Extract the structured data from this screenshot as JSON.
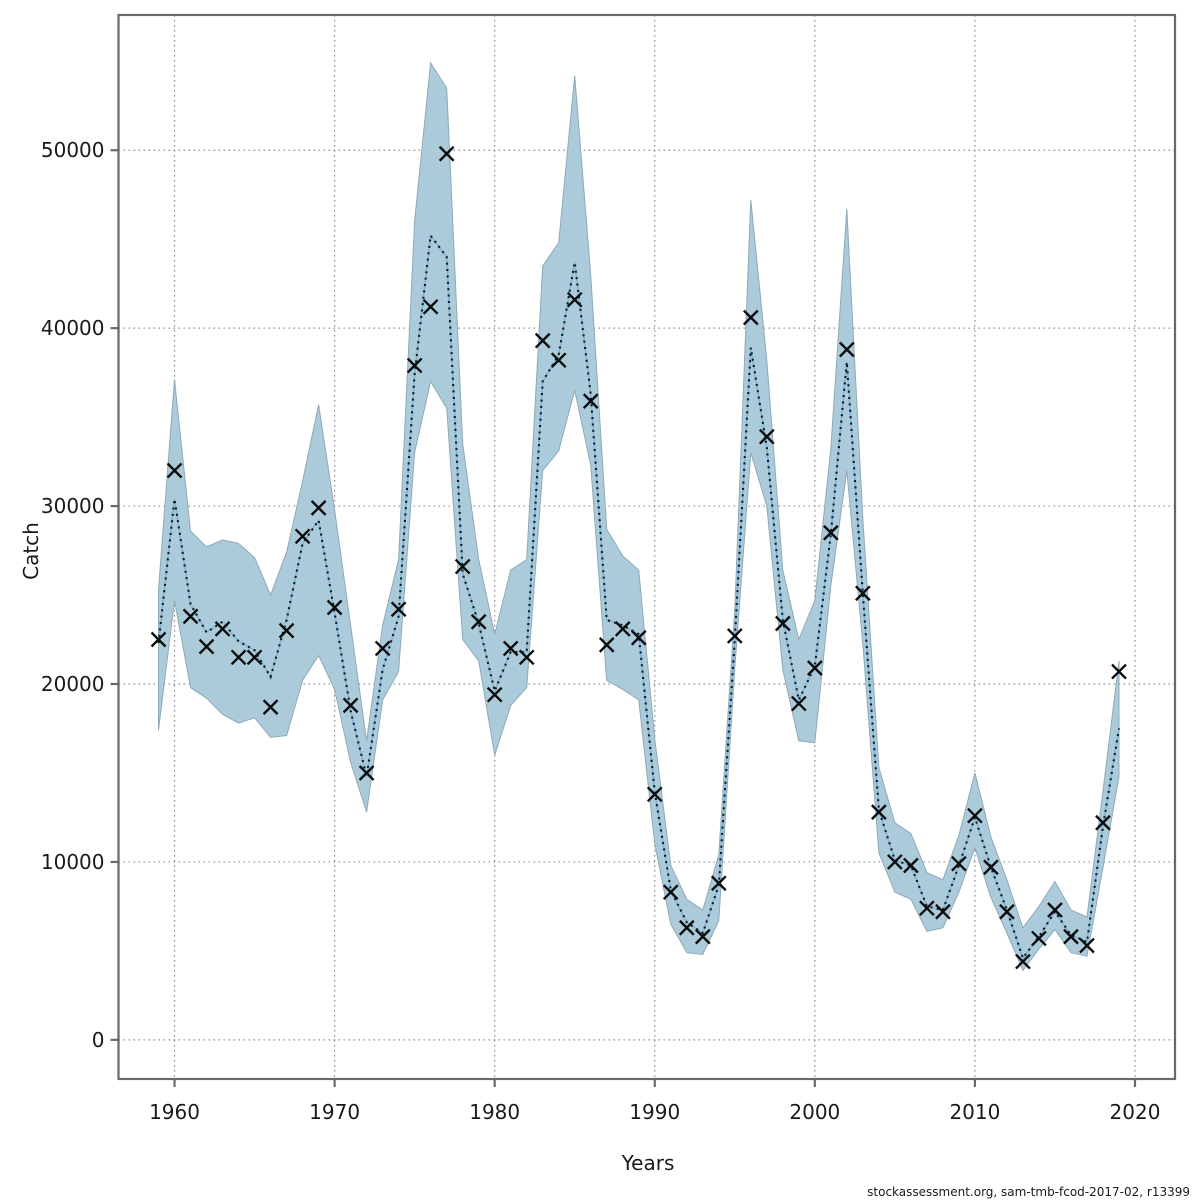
{
  "figure": {
    "footer": "stockassessment.org, sam-tmb-fcod-2017-02, r13399"
  },
  "chart_data": {
    "type": "line",
    "title": "",
    "xlabel": "Years",
    "ylabel": "Catch",
    "legend_position": "none",
    "grid": "dotted",
    "xlim": [
      1956.5,
      2022.5
    ],
    "ylim": [
      -2200,
      57600
    ],
    "x_ticks": [
      1960,
      1970,
      1980,
      1990,
      2000,
      2010,
      2020
    ],
    "x_tick_labels": [
      "1960",
      "1970",
      "1980",
      "1990",
      "2000",
      "2010",
      "2020"
    ],
    "y_ticks": [
      0,
      10000,
      20000,
      30000,
      40000,
      50000
    ],
    "y_tick_labels": [
      "0",
      "10000",
      "20000",
      "30000",
      "40000",
      "50000"
    ],
    "years": [
      1959,
      1960,
      1961,
      1962,
      1963,
      1964,
      1965,
      1966,
      1967,
      1968,
      1969,
      1970,
      1971,
      1972,
      1973,
      1974,
      1975,
      1976,
      1977,
      1978,
      1979,
      1980,
      1981,
      1982,
      1983,
      1984,
      1985,
      1986,
      1987,
      1988,
      1989,
      1990,
      1991,
      1992,
      1993,
      1994,
      1995,
      1996,
      1997,
      1998,
      1999,
      2000,
      2001,
      2002,
      2003,
      2004,
      2005,
      2006,
      2007,
      2008,
      2009,
      2010,
      2011,
      2012,
      2013,
      2014,
      2015,
      2016,
      2017,
      2018,
      2019
    ],
    "series": [
      {
        "name": "observed-catch-markers",
        "style": "x-marker",
        "values": [
          22500,
          32000,
          23800,
          22100,
          23100,
          21500,
          21500,
          18700,
          23000,
          28300,
          29900,
          24300,
          18800,
          15000,
          22000,
          24200,
          37900,
          41200,
          49800,
          26600,
          23500,
          19400,
          22000,
          21500,
          39300,
          38200,
          41600,
          35900,
          22200,
          23100,
          22600,
          13800,
          8300,
          6300,
          5800,
          8800,
          22700,
          40600,
          33900,
          23400,
          18900,
          20900,
          28500,
          38800,
          25100,
          12800,
          10000,
          9800,
          7400,
          7200,
          9900,
          12600,
          9700,
          7200,
          4400,
          5700,
          7300,
          5800,
          5300,
          12200,
          20700
        ]
      },
      {
        "name": "estimated-catch-line",
        "style": "dotted-line",
        "values": [
          22300,
          30400,
          24500,
          22900,
          23500,
          22400,
          21900,
          20400,
          23600,
          27900,
          29200,
          24000,
          18500,
          14800,
          20800,
          23800,
          37400,
          45200,
          44000,
          26200,
          23400,
          19600,
          21800,
          21800,
          37000,
          38500,
          43700,
          36300,
          23600,
          23300,
          22800,
          13900,
          8400,
          6600,
          6000,
          8700,
          22500,
          38900,
          33300,
          23600,
          19100,
          21000,
          28400,
          38100,
          25000,
          12900,
          10100,
          9800,
          7500,
          7300,
          9800,
          12500,
          9700,
          7300,
          4600,
          5800,
          7200,
          5900,
          5500,
          12000,
          17500
        ]
      },
      {
        "name": "confidence-lower",
        "style": "band-lower",
        "values": [
          17400,
          24700,
          19800,
          19200,
          18300,
          17800,
          18100,
          17000,
          17100,
          20200,
          21600,
          19700,
          15600,
          12800,
          19100,
          20700,
          33000,
          37000,
          35500,
          22500,
          21300,
          16000,
          18800,
          19800,
          32000,
          33100,
          36500,
          32300,
          20200,
          19700,
          19100,
          11000,
          6500,
          4900,
          4800,
          6700,
          20900,
          33000,
          30000,
          20800,
          16800,
          16700,
          25500,
          32000,
          22200,
          10500,
          8300,
          7900,
          6100,
          6300,
          8300,
          10800,
          8000,
          6000,
          3900,
          5100,
          6200,
          4900,
          4700,
          9700,
          14800
        ]
      },
      {
        "name": "confidence-upper",
        "style": "band-upper",
        "values": [
          25300,
          37100,
          28600,
          27700,
          28100,
          27900,
          27100,
          25000,
          27400,
          31400,
          35700,
          29800,
          23300,
          16800,
          23300,
          27000,
          46000,
          54900,
          53500,
          33500,
          27000,
          22800,
          26400,
          27000,
          43500,
          44800,
          54200,
          43000,
          28700,
          27200,
          26400,
          16900,
          9800,
          7900,
          7300,
          10400,
          24200,
          47200,
          38200,
          26400,
          22500,
          24700,
          33200,
          46700,
          29200,
          15300,
          12200,
          11600,
          9400,
          9000,
          11500,
          15000,
          11400,
          9000,
          6300,
          7500,
          8900,
          7300,
          6900,
          14000,
          21300
        ]
      }
    ],
    "colors": {
      "background": "#ffffff",
      "band_fill": "#abcbdb",
      "band_edge": "#8fa9b7",
      "fit_line_under": "#79b7dd",
      "fit_line_dots": "#141414",
      "marker": "#0c0c0c",
      "grid": "#8f8f8f",
      "frame": "#696969",
      "text": "#1a1a1a"
    }
  }
}
